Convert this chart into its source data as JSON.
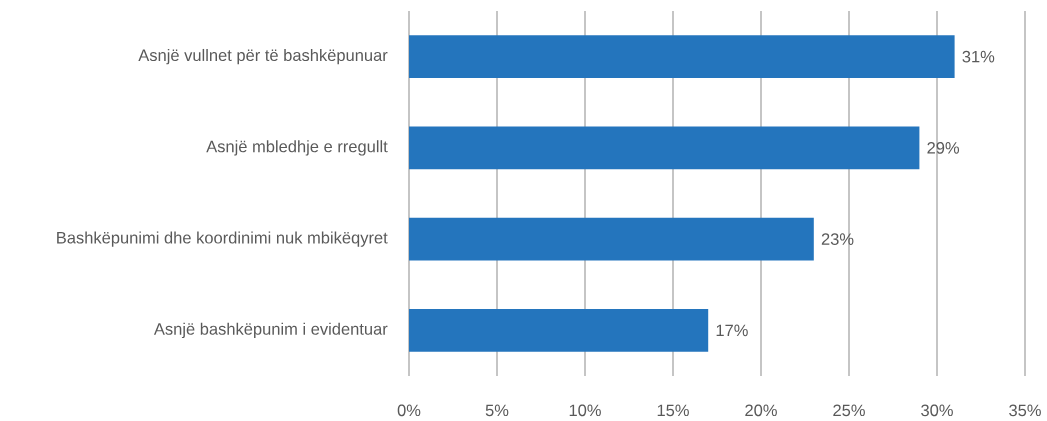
{
  "chart_data": {
    "type": "bar",
    "orientation": "horizontal",
    "categories": [
      "Asnjë vullnet për të bashkëpunuar",
      "Asnjë mbledhje e rregullt",
      "Bashkëpunimi dhe koordinimi nuk mbikëqyret",
      "Asnjë bashkëpunim i evidentuar"
    ],
    "values": [
      31,
      29,
      23,
      17
    ],
    "color": "#2475bd",
    "value_labels": [
      "31%",
      "29%",
      "23%",
      "17%"
    ],
    "xlim": [
      0,
      35
    ],
    "xticks": [
      {
        "value": 0,
        "label": "0%"
      },
      {
        "value": 5,
        "label": "5%"
      },
      {
        "value": 10,
        "label": "10%"
      },
      {
        "value": 15,
        "label": "15%"
      },
      {
        "value": 20,
        "label": "20%"
      },
      {
        "value": 25,
        "label": "25%"
      },
      {
        "value": 30,
        "label": "30%"
      },
      {
        "value": 35,
        "label": "35%"
      }
    ],
    "grid": "x"
  }
}
